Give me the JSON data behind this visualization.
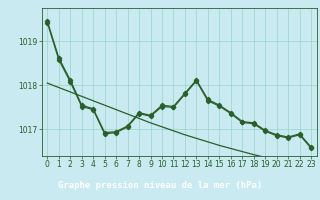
{
  "bg_color": "#c8eaf0",
  "plot_bg_color": "#c8eaf0",
  "label_bg_color": "#3a7a3a",
  "line_color": "#2a5e2a",
  "grid_color": "#90cfc0",
  "text_color": "#2a5e2a",
  "label_text_color": "#ffffff",
  "xlabel": "Graphe pression niveau de la mer (hPa)",
  "hours": [
    0,
    1,
    2,
    3,
    4,
    5,
    6,
    7,
    8,
    9,
    10,
    11,
    12,
    13,
    14,
    15,
    16,
    17,
    18,
    19,
    20,
    21,
    22,
    23
  ],
  "series_top": [
    1019.45,
    1018.62,
    1018.12,
    1017.55,
    1017.47,
    1016.93,
    1016.95,
    1017.08,
    1017.38,
    1017.32,
    1017.55,
    1017.52,
    1017.82,
    1018.12,
    1017.68,
    1017.55,
    1017.38,
    1017.18,
    1017.15,
    1016.98,
    1016.88,
    1016.83,
    1016.9,
    1016.6
  ],
  "series_mid": [
    1019.45,
    1018.62,
    1018.12,
    1017.55,
    1017.47,
    1016.93,
    1016.95,
    1017.08,
    1017.38,
    1017.32,
    1017.55,
    1017.52,
    1017.82,
    1018.12,
    1017.68,
    1017.55,
    1017.38,
    1017.18,
    1017.15,
    1016.98,
    1016.88,
    1016.83,
    1016.9,
    1016.6
  ],
  "series_trend": [
    1018.05,
    1017.95,
    1017.85,
    1017.75,
    1017.65,
    1017.55,
    1017.45,
    1017.35,
    1017.25,
    1017.15,
    1017.06,
    1016.97,
    1016.88,
    1016.8,
    1016.72,
    1016.64,
    1016.57,
    1016.5,
    1016.43,
    1016.37,
    1016.31,
    1016.25,
    1016.2,
    1016.14
  ],
  "ylim_min": 1016.4,
  "ylim_max": 1019.75,
  "yticks": [
    1017.0,
    1018.0,
    1019.0
  ],
  "marker_style": "D",
  "marker_size": 2.2,
  "line_width": 0.9,
  "xlabel_fontsize": 6.5,
  "tick_fontsize": 5.5
}
